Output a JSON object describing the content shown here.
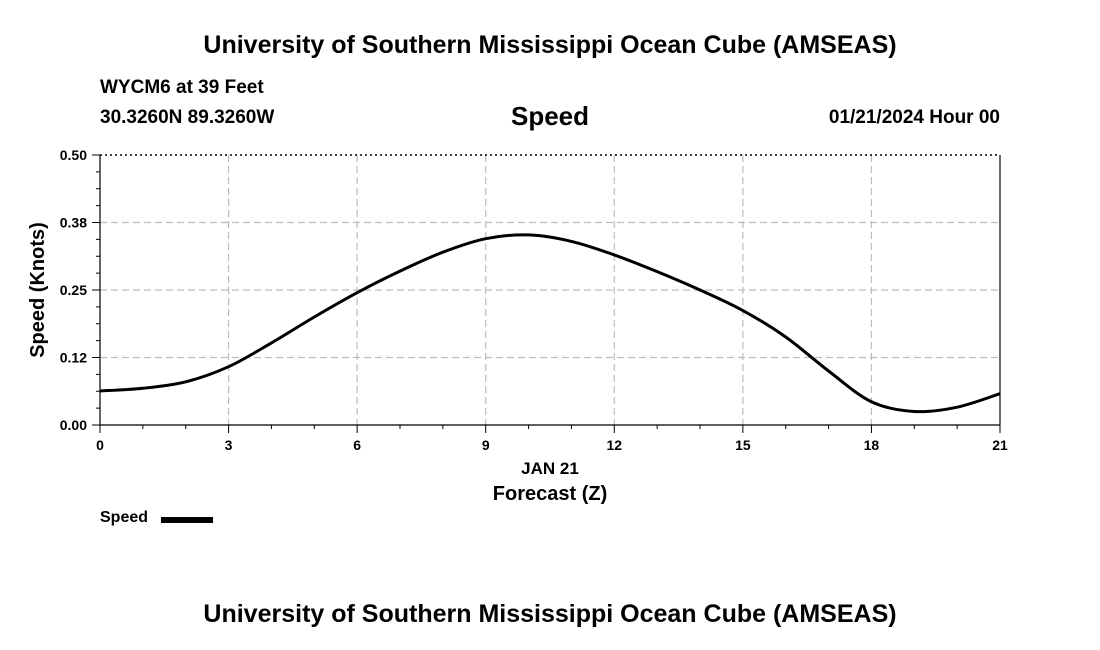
{
  "header": {
    "title": "University of Southern Mississippi Ocean Cube (AMSEAS)",
    "station": "WYCM6 at 39 Feet",
    "coords": "30.3260N  89.3260W",
    "plot_title": "Speed",
    "datetime": "01/21/2024 Hour 00"
  },
  "footer": {
    "title": "University of Southern Mississippi Ocean Cube (AMSEAS)"
  },
  "chart_data": {
    "type": "line",
    "title": "Speed",
    "xlabel": "Forecast (Z)",
    "xlabel_date": "JAN 21",
    "ylabel": "Speed (Knots)",
    "xlim": [
      0,
      21
    ],
    "ylim": [
      0,
      0.5
    ],
    "x_ticks": [
      0,
      3,
      6,
      9,
      12,
      15,
      18,
      21
    ],
    "x_tick_labels": [
      "0",
      "3",
      "6",
      "9",
      "12",
      "15",
      "18",
      "21"
    ],
    "y_ticks": [
      0,
      0.125,
      0.25,
      0.375,
      0.5
    ],
    "y_tick_labels": [
      "0.00",
      "0.12",
      "0.25",
      "0.38",
      "0.50"
    ],
    "grid": true,
    "legend": "bottom-left",
    "series": [
      {
        "name": "Speed",
        "color": "#000000",
        "x": [
          0,
          1,
          2,
          3,
          4,
          5,
          6,
          7,
          8,
          9,
          10,
          11,
          12,
          13,
          14,
          15,
          16,
          17,
          18,
          19,
          20,
          21
        ],
        "y": [
          0.063,
          0.068,
          0.08,
          0.108,
          0.152,
          0.2,
          0.245,
          0.285,
          0.32,
          0.345,
          0.352,
          0.34,
          0.315,
          0.284,
          0.25,
          0.212,
          0.163,
          0.1,
          0.043,
          0.025,
          0.033,
          0.058
        ]
      }
    ]
  }
}
